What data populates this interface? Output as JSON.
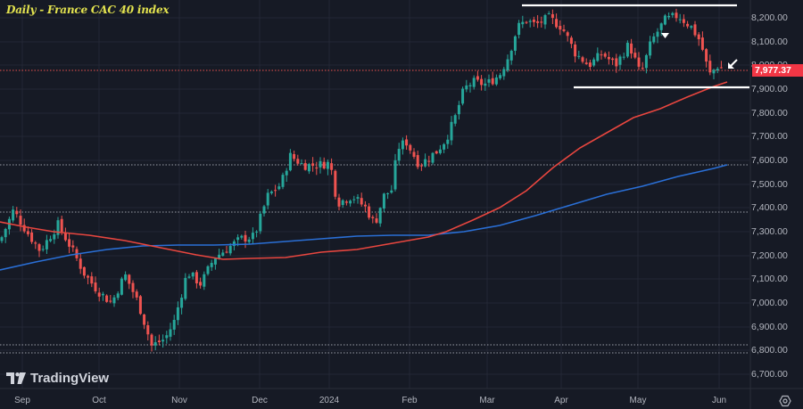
{
  "title": "Daily - France CAC 40 index",
  "brand": "TradingView",
  "price_axis": {
    "labels": [
      "8,200.00",
      "8,100.00",
      "8,000.00",
      "7,900.00",
      "7,800.00",
      "7,700.00",
      "7,600.00",
      "7,500.00",
      "7,400.00",
      "7,300.00",
      "7,200.00",
      "7,100.00",
      "7,000.00",
      "6,900.00",
      "6,800.00",
      "6,700.00"
    ],
    "current_price": "7,977.37"
  },
  "time_axis": {
    "labels": [
      "Sep",
      "Oct",
      "Nov",
      "Dec",
      "2024",
      "Feb",
      "Mar",
      "Apr",
      "May",
      "Jun"
    ]
  },
  "icons": {
    "settings": "settings-icon",
    "brand_logo": "tradingview-logo-icon"
  },
  "colors": {
    "background": "#161a25",
    "up": "#26a69a",
    "down": "#ef5350",
    "ma_red": "#f23645",
    "ma_blue": "#2962ff",
    "title": "#e3e34f",
    "support_lines": "#ffffff"
  },
  "chart_data": {
    "type": "candlestick",
    "title": "Daily - France CAC 40 index",
    "xlabel": "",
    "ylabel": "",
    "ylim": [
      6650,
      8260
    ],
    "x_ticks": [
      "Sep",
      "Oct",
      "Nov",
      "Dec",
      "2024",
      "Feb",
      "Mar",
      "Apr",
      "May",
      "Jun"
    ],
    "y_ticks": [
      6700,
      6800,
      6900,
      7000,
      7100,
      7200,
      7300,
      7400,
      7500,
      7600,
      7700,
      7800,
      7900,
      8000,
      8100,
      8200
    ],
    "current_price": 7977.37,
    "series": [
      {
        "name": "Price (daily candles)",
        "approx_path": [
          {
            "t": "Sep",
            "close": 7280
          },
          {
            "t": "mid-Sep",
            "close": 7220
          },
          {
            "t": "late-Sep",
            "close": 7250
          },
          {
            "t": "Oct",
            "close": 7100
          },
          {
            "t": "mid-Oct",
            "close": 7000
          },
          {
            "t": "late-Oct",
            "close": 6820
          },
          {
            "t": "Nov",
            "close": 6950
          },
          {
            "t": "mid-Nov",
            "close": 7150
          },
          {
            "t": "late-Nov",
            "close": 7250
          },
          {
            "t": "Dec",
            "close": 7450
          },
          {
            "t": "mid-Dec",
            "close": 7580
          },
          {
            "t": "late-Dec",
            "close": 7550
          },
          {
            "t": "2024",
            "close": 7400
          },
          {
            "t": "mid-Jan",
            "close": 7350
          },
          {
            "t": "late-Jan",
            "close": 7450
          },
          {
            "t": "Feb",
            "close": 7650
          },
          {
            "t": "mid-Feb",
            "close": 7700
          },
          {
            "t": "late-Feb",
            "close": 7950
          },
          {
            "t": "Mar",
            "close": 8050
          },
          {
            "t": "mid-Mar",
            "close": 8150
          },
          {
            "t": "late-Mar",
            "close": 8200
          },
          {
            "t": "Apr",
            "close": 8150
          },
          {
            "t": "mid-Apr",
            "close": 8000
          },
          {
            "t": "late-Apr",
            "close": 8050
          },
          {
            "t": "May",
            "close": 8150
          },
          {
            "t": "mid-May",
            "close": 8230
          },
          {
            "t": "late-May",
            "close": 8080
          },
          {
            "t": "Jun",
            "close": 7977.37
          }
        ]
      },
      {
        "name": "Moving average (red, ~100-day)",
        "values": [
          {
            "t": "Sep",
            "v": 7330
          },
          {
            "t": "Oct",
            "v": 7260
          },
          {
            "t": "Nov",
            "v": 7200
          },
          {
            "t": "Dec",
            "v": 7190
          },
          {
            "t": "2024",
            "v": 7230
          },
          {
            "t": "Feb",
            "v": 7290
          },
          {
            "t": "Mar",
            "v": 7420
          },
          {
            "t": "Apr",
            "v": 7650
          },
          {
            "t": "May",
            "v": 7810
          },
          {
            "t": "Jun",
            "v": 7930
          }
        ]
      },
      {
        "name": "Moving average (blue, ~200-day)",
        "values": [
          {
            "t": "Sep",
            "v": 7150
          },
          {
            "t": "Oct",
            "v": 7220
          },
          {
            "t": "Nov",
            "v": 7250
          },
          {
            "t": "Dec",
            "v": 7255
          },
          {
            "t": "2024",
            "v": 7290
          },
          {
            "t": "Feb",
            "v": 7300
          },
          {
            "t": "Mar",
            "v": 7340
          },
          {
            "t": "Apr",
            "v": 7440
          },
          {
            "t": "May",
            "v": 7510
          },
          {
            "t": "Jun",
            "v": 7580
          }
        ]
      }
    ],
    "annotations": [
      {
        "type": "horizontal_line",
        "label": "resistance",
        "value": 8250,
        "x_range": [
          "Mar",
          "Jun"
        ]
      },
      {
        "type": "horizontal_line",
        "label": "support",
        "value": 7905,
        "x_range": [
          "Apr",
          "Jun"
        ]
      },
      {
        "type": "dotted_horizontal",
        "value": 7977.37,
        "color": "#ef5350"
      },
      {
        "type": "dotted_horizontal",
        "value": 7580
      },
      {
        "type": "dotted_horizontal",
        "value": 7380
      },
      {
        "type": "dotted_horizontal",
        "value": 6825
      },
      {
        "type": "dotted_horizontal",
        "value": 6790
      },
      {
        "type": "arrow_down_marker",
        "at": "mid-May",
        "value": 8060
      },
      {
        "type": "arrow_pointer",
        "at": "Jun",
        "value": 7990
      }
    ]
  }
}
